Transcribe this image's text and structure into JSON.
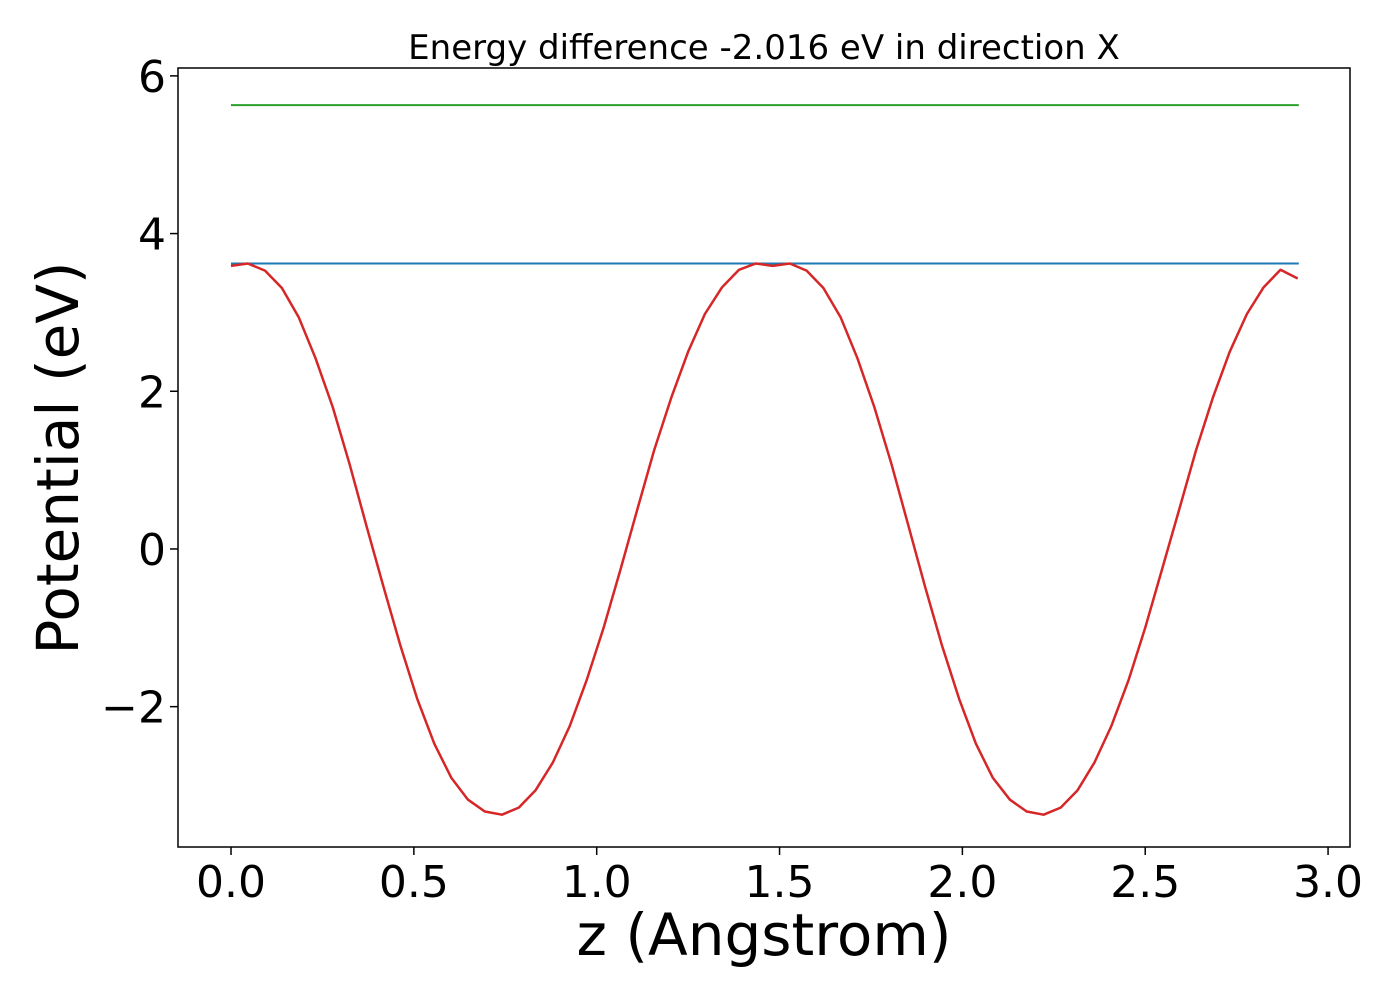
{
  "chart_data": {
    "type": "line",
    "title": "Energy difference -2.016 eV in direction X",
    "xlabel": "z (Angstrom)",
    "ylabel": "Potential (eV)",
    "xlim": [
      -0.145,
      3.06
    ],
    "ylim": [
      -3.78,
      6.1
    ],
    "xticks": [
      0.0,
      0.5,
      1.0,
      1.5,
      2.0,
      2.5,
      3.0
    ],
    "xtick_labels": [
      "0.0",
      "0.5",
      "1.0",
      "1.5",
      "2.0",
      "2.5",
      "3.0"
    ],
    "yticks": [
      -2,
      0,
      2,
      4,
      6
    ],
    "ytick_labels": [
      "−2",
      "0",
      "2",
      "4",
      "6"
    ],
    "grid": false,
    "legend": "none",
    "series": [
      {
        "color": "#2ca02c",
        "x": [
          0.0,
          2.92
        ],
        "y": [
          5.63,
          5.63
        ]
      },
      {
        "color": "#1f77b4",
        "x": [
          0.0,
          2.92
        ],
        "y": [
          3.62,
          3.62
        ]
      },
      {
        "color": "#d62728",
        "x": [
          0.0,
          0.046,
          0.093,
          0.139,
          0.185,
          0.231,
          0.278,
          0.324,
          0.37,
          0.417,
          0.463,
          0.509,
          0.556,
          0.602,
          0.648,
          0.694,
          0.741,
          0.787,
          0.833,
          0.88,
          0.926,
          0.972,
          1.019,
          1.065,
          1.111,
          1.157,
          1.204,
          1.25,
          1.296,
          1.343,
          1.389,
          1.435,
          1.481,
          1.528,
          1.574,
          1.62,
          1.667,
          1.713,
          1.759,
          1.806,
          1.852,
          1.898,
          1.944,
          1.991,
          2.037,
          2.083,
          2.13,
          2.176,
          2.222,
          2.269,
          2.315,
          2.361,
          2.407,
          2.454,
          2.5,
          2.546,
          2.593,
          2.639,
          2.685,
          2.731,
          2.778,
          2.824,
          2.87,
          2.917
        ],
        "y": [
          3.59,
          3.62,
          3.53,
          3.31,
          2.94,
          2.42,
          1.8,
          1.08,
          0.3,
          -0.48,
          -1.22,
          -1.9,
          -2.47,
          -2.9,
          -3.18,
          -3.33,
          -3.37,
          -3.28,
          -3.06,
          -2.71,
          -2.25,
          -1.67,
          -1.0,
          -0.26,
          0.5,
          1.25,
          1.92,
          2.5,
          2.98,
          3.32,
          3.54,
          3.62,
          3.59,
          3.62,
          3.53,
          3.31,
          2.94,
          2.42,
          1.8,
          1.08,
          0.3,
          -0.48,
          -1.22,
          -1.9,
          -2.47,
          -2.9,
          -3.18,
          -3.33,
          -3.37,
          -3.28,
          -3.06,
          -2.71,
          -2.25,
          -1.67,
          -1.0,
          -0.26,
          0.5,
          1.25,
          1.92,
          2.5,
          2.98,
          3.32,
          3.54,
          3.43
        ]
      }
    ]
  }
}
